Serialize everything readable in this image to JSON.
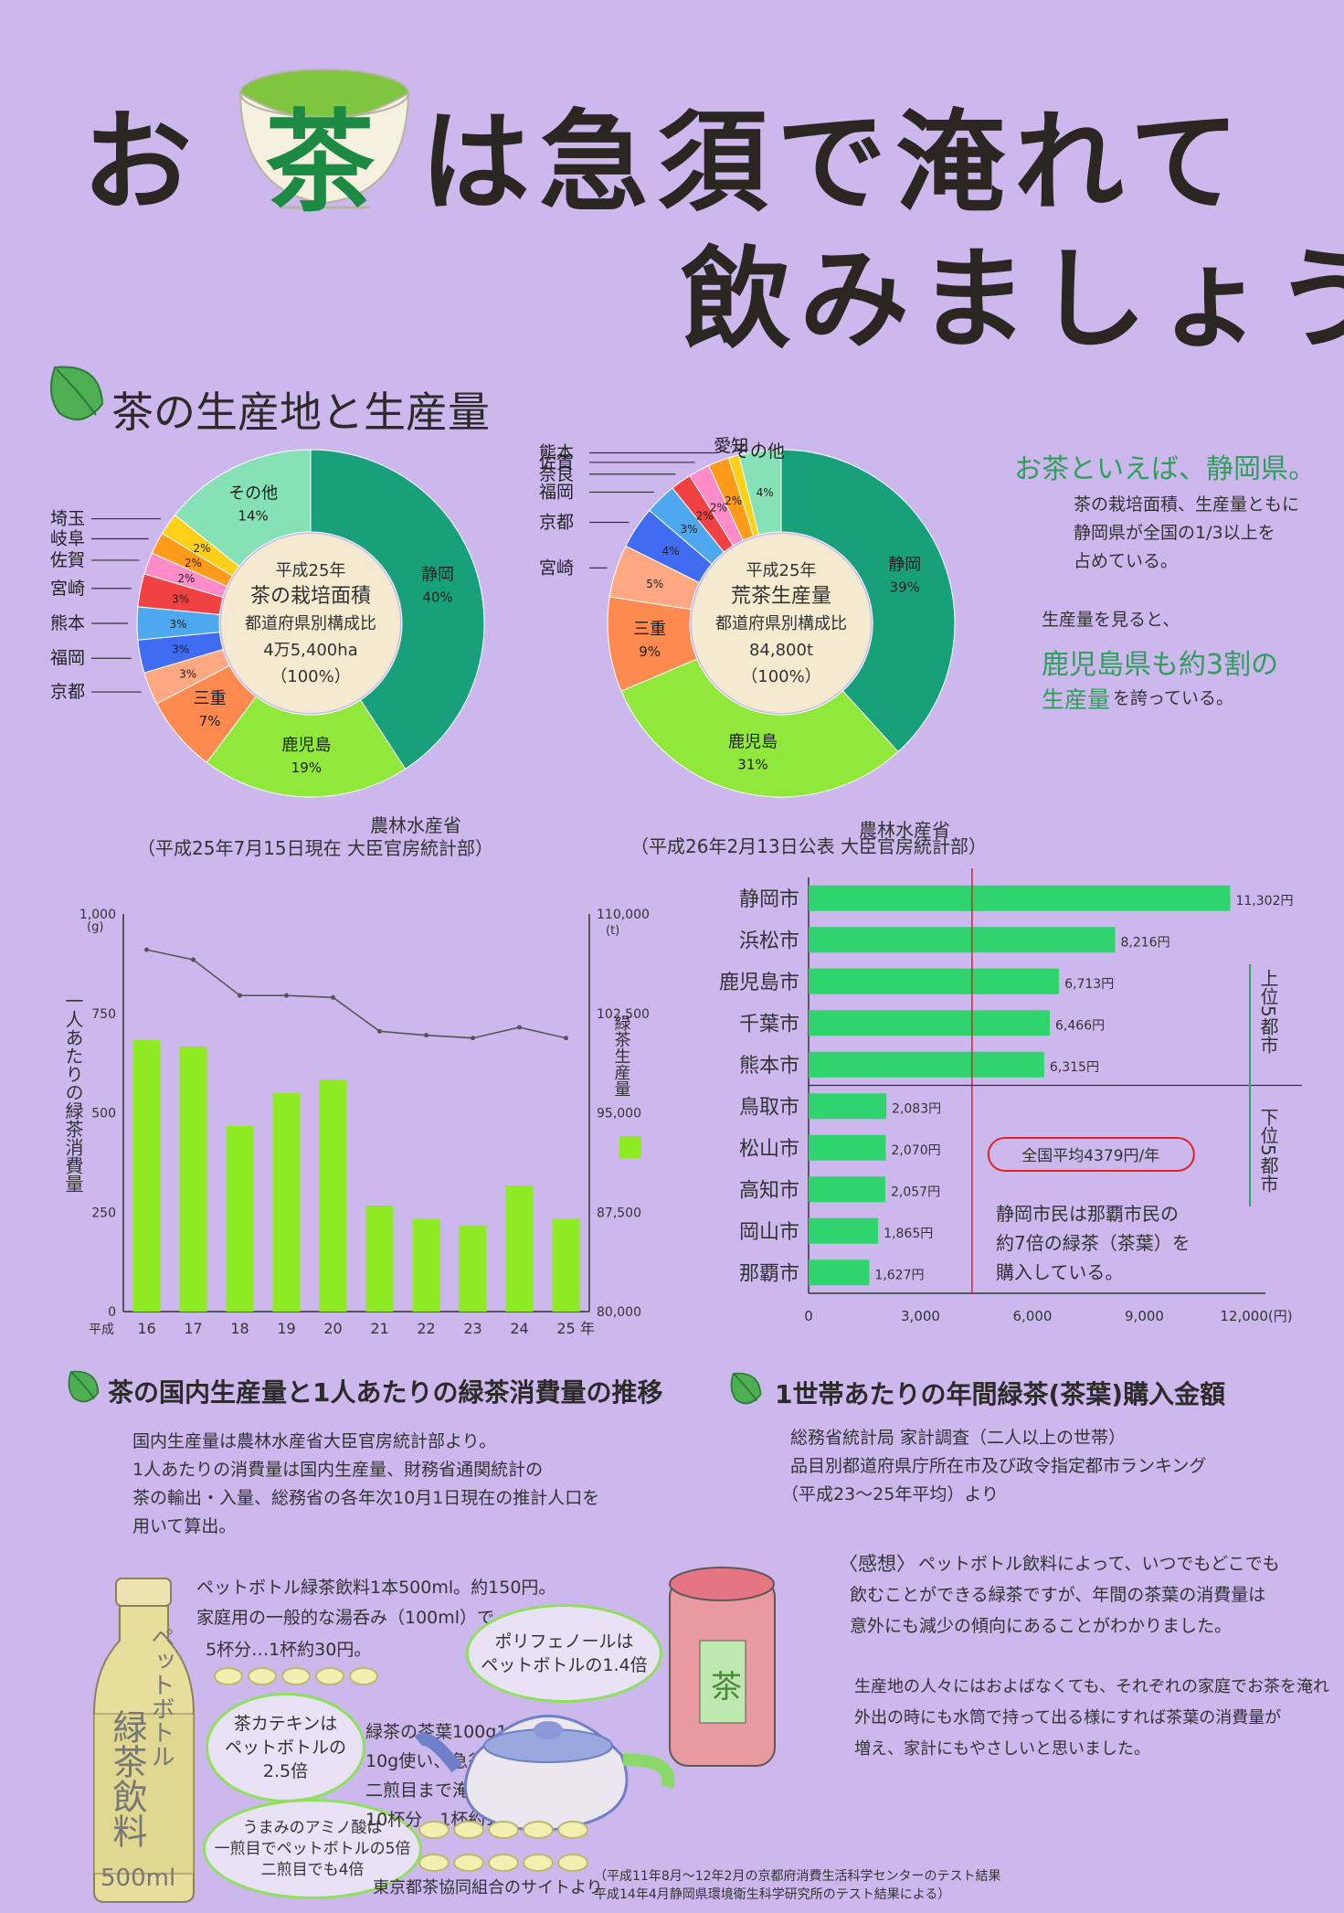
{
  "title": {
    "line1_a": "お",
    "line1_tea": "茶",
    "line1_b": "は急須で淹れて",
    "line2": "飲みましょう"
  },
  "section1": {
    "title": "茶の生産地と生産量",
    "source_left": {
      "org": "農林水産省",
      "detail": "（平成25年7月15日現在 大臣官房統計部）"
    },
    "source_right": {
      "org": "農林水産省",
      "detail": "（平成26年2月13日公表 大臣官房統計部）"
    }
  },
  "side_note": {
    "headline": "お茶といえば、静岡県。",
    "body": [
      "茶の栽培面積、生産量ともに",
      "静岡県が全国の1/3以上を",
      "占めている。"
    ],
    "lead": "生産量を見ると、",
    "emph1": "鹿児島県も約3割の",
    "emph2": "生産量",
    "emph2_tail": "を誇っている。"
  },
  "chart_data": [
    {
      "type": "pie",
      "center": {
        "line1": "平成25年",
        "line2": "茶の栽培面積",
        "line3": "都道府県別構成比",
        "line4": "4万5,400ha",
        "line5": "（100%）"
      },
      "slices": [
        {
          "label": "静岡",
          "value": 40,
          "display": "40%",
          "color": "#17a079"
        },
        {
          "label": "鹿児島",
          "value": 19,
          "display": "19%",
          "color": "#8fe83a"
        },
        {
          "label": "三重",
          "value": 7,
          "display": "7%",
          "color": "#ff8a50"
        },
        {
          "label": "京都",
          "value": 3,
          "display": "3%",
          "color": "#ffa882"
        },
        {
          "label": "福岡",
          "value": 3,
          "display": "3%",
          "color": "#3f6cf0"
        },
        {
          "label": "熊本",
          "value": 3,
          "display": "3%",
          "color": "#4ea8ef"
        },
        {
          "label": "宮崎",
          "value": 3,
          "display": "3%",
          "color": "#f04242"
        },
        {
          "label": "佐賀",
          "value": 2,
          "display": "2%",
          "color": "#ff8bc8"
        },
        {
          "label": "岐阜",
          "value": 2,
          "display": "2%",
          "color": "#ff9a1a"
        },
        {
          "label": "埼玉",
          "value": 2,
          "display": "2%",
          "color": "#ffd019"
        },
        {
          "label": "その他",
          "value": 14,
          "display": "14%",
          "color": "#86e2b6"
        }
      ]
    },
    {
      "type": "pie",
      "center": {
        "line1": "平成25年",
        "line2": "荒茶生産量",
        "line3": "都道府県別構成比",
        "line4": "84,800t",
        "line5": "（100%）"
      },
      "slices": [
        {
          "label": "静岡",
          "value": 39,
          "display": "39%",
          "color": "#17a079"
        },
        {
          "label": "鹿児島",
          "value": 31,
          "display": "31%",
          "color": "#8fe83a"
        },
        {
          "label": "三重",
          "value": 9,
          "display": "9%",
          "color": "#ff8a50"
        },
        {
          "label": "宮崎",
          "value": 5,
          "display": "5%",
          "color": "#ffa882"
        },
        {
          "label": "京都",
          "value": 4,
          "display": "4%",
          "color": "#3f6cf0"
        },
        {
          "label": "福岡",
          "value": 3,
          "display": "3%",
          "color": "#4ea8ef"
        },
        {
          "label": "奈良",
          "value": 2,
          "display": "2%",
          "color": "#f04242"
        },
        {
          "label": "佐賀",
          "value": 2,
          "display": "2%",
          "color": "#ff8bc8"
        },
        {
          "label": "熊本",
          "value": 2,
          "display": "2%",
          "color": "#ff9a1a"
        },
        {
          "label": "愛知",
          "value": 1,
          "display": "",
          "color": "#ffd019"
        },
        {
          "label": "その他",
          "value": 4,
          "display": "4%",
          "color": "#86e2b6"
        }
      ]
    },
    {
      "type": "bar",
      "title": "茶の国内生産量と1人あたりの緑茶消費量の推移",
      "x_prefix": "平成",
      "x_suffix": "年",
      "categories": [
        "16",
        "17",
        "18",
        "19",
        "20",
        "21",
        "22",
        "23",
        "24",
        "25"
      ],
      "series": [
        {
          "name": "緑茶生産量",
          "axis": "right",
          "values": [
            100500,
            100000,
            94000,
            96500,
            97500,
            88000,
            87000,
            86500,
            89500,
            87000
          ],
          "color": "#8eea22"
        },
        {
          "name": "一人あたりの緑茶消費量",
          "axis": "left",
          "type": "line",
          "values": [
            910,
            885,
            795,
            795,
            790,
            705,
            695,
            688,
            715,
            688
          ],
          "color": "#555555"
        }
      ],
      "ylabel": "一人あたりの緑茶消費量",
      "yunit": "(g)",
      "yticks": [
        "1,000",
        "750",
        "500",
        "250",
        "0"
      ],
      "ylim": [
        0,
        1000
      ],
      "y2label": "緑茶生産量",
      "y2unit": "(t)",
      "y2ticks": [
        "110,000",
        "102,500",
        "95,000",
        "87,500",
        "80,000"
      ],
      "y2lim": [
        80000,
        110000
      ]
    },
    {
      "type": "bar",
      "orientation": "horizontal",
      "title": "1世帯あたりの年間緑茶(茶葉)購入金額",
      "categories": [
        "静岡市",
        "浜松市",
        "鹿児島市",
        "千葉市",
        "熊本市",
        "鳥取市",
        "松山市",
        "高知市",
        "岡山市",
        "那覇市"
      ],
      "values": [
        11302,
        8216,
        6713,
        6466,
        6315,
        2083,
        2070,
        2057,
        1865,
        1627
      ],
      "value_labels": [
        "11,302円",
        "8,216円",
        "6,713円",
        "6,466円",
        "6,315円",
        "2,083円",
        "2,070円",
        "2,057円",
        "1,865円",
        "1,627円"
      ],
      "xticks": [
        "0",
        "3,000",
        "6,000",
        "9,000",
        "12,000(円)"
      ],
      "xlim": [
        0,
        12000
      ],
      "average": 4379,
      "average_label": "全国平均4379円/年",
      "top_label": "上位5都市",
      "bottom_label": "下位5都市",
      "color": "#2fd46e"
    }
  ],
  "section2": {
    "title": "茶の国内生産量と1人あたりの緑茶消費量の推移",
    "notes": [
      "国内生産量は農林水産省大臣官房統計部より。",
      "1人あたりの消費量は国内生産量、財務省通関統計の",
      "茶の輸出・入量、総務省の各年次10月1日現在の推計人口を",
      "用いて算出。"
    ]
  },
  "section3": {
    "title": "1世帯あたりの年間緑茶(茶葉)購入金額",
    "notes": [
      "総務省統計局 家計調査（二人以上の世帯）",
      "品目別都道府県庁所在市及び政令指定都市ランキング",
      "（平成23〜25年平均）より"
    ],
    "comparison": [
      "静岡市民は那覇市民の",
      "約7倍の緑茶（茶葉）を",
      "購入している。"
    ]
  },
  "bottom": {
    "pet_bottle_label": "ペットボトル",
    "pet_bottle_text": "緑茶飲料",
    "pet_bottle_volume": "500ml",
    "cost1": [
      "ペットボトル緑茶飲料1本500ml。約150円。",
      "家庭用の一般的な湯呑み（100ml）で",
      "5杯分…1杯約30円。"
    ],
    "bubble_poly": [
      "ポリフェノールは",
      "ペットボトルの1.4倍"
    ],
    "bubble_catechin": [
      "茶カテキンは",
      "ペットボトルの",
      "2.5倍"
    ],
    "bubble_amino": [
      "うまみのアミノ酸は",
      "一煎目でペットボトルの5倍",
      "二煎目でも4倍"
    ],
    "cost2": [
      "緑茶の茶葉100g1,000円を",
      "10g使い、急須で",
      "二煎目まで淹れると",
      "10杯分…1杯約10円。"
    ],
    "canister_label": "茶",
    "source": "東京都茶協同組合のサイトより",
    "source_detail": [
      "（平成11年8月〜12年2月の京都府消費生活科学センターのテスト結果",
      "平成14年4月静岡県環境衛生科学研究所のテスト結果による）"
    ],
    "impression_title": "〈感想〉",
    "impression": [
      "ペットボトル飲料によって、いつでもどこでも",
      "飲むことができる緑茶ですが、年間の茶葉の消費量は",
      "意外にも減少の傾向にあることがわかりました。",
      "",
      "生産地の人々にはおよばなくても、それぞれの家庭でお茶を淹れ",
      "外出の時にも水筒で持って出る様にすれば茶葉の消費量が",
      "増え、家計にもやさしいと思いました。"
    ]
  }
}
